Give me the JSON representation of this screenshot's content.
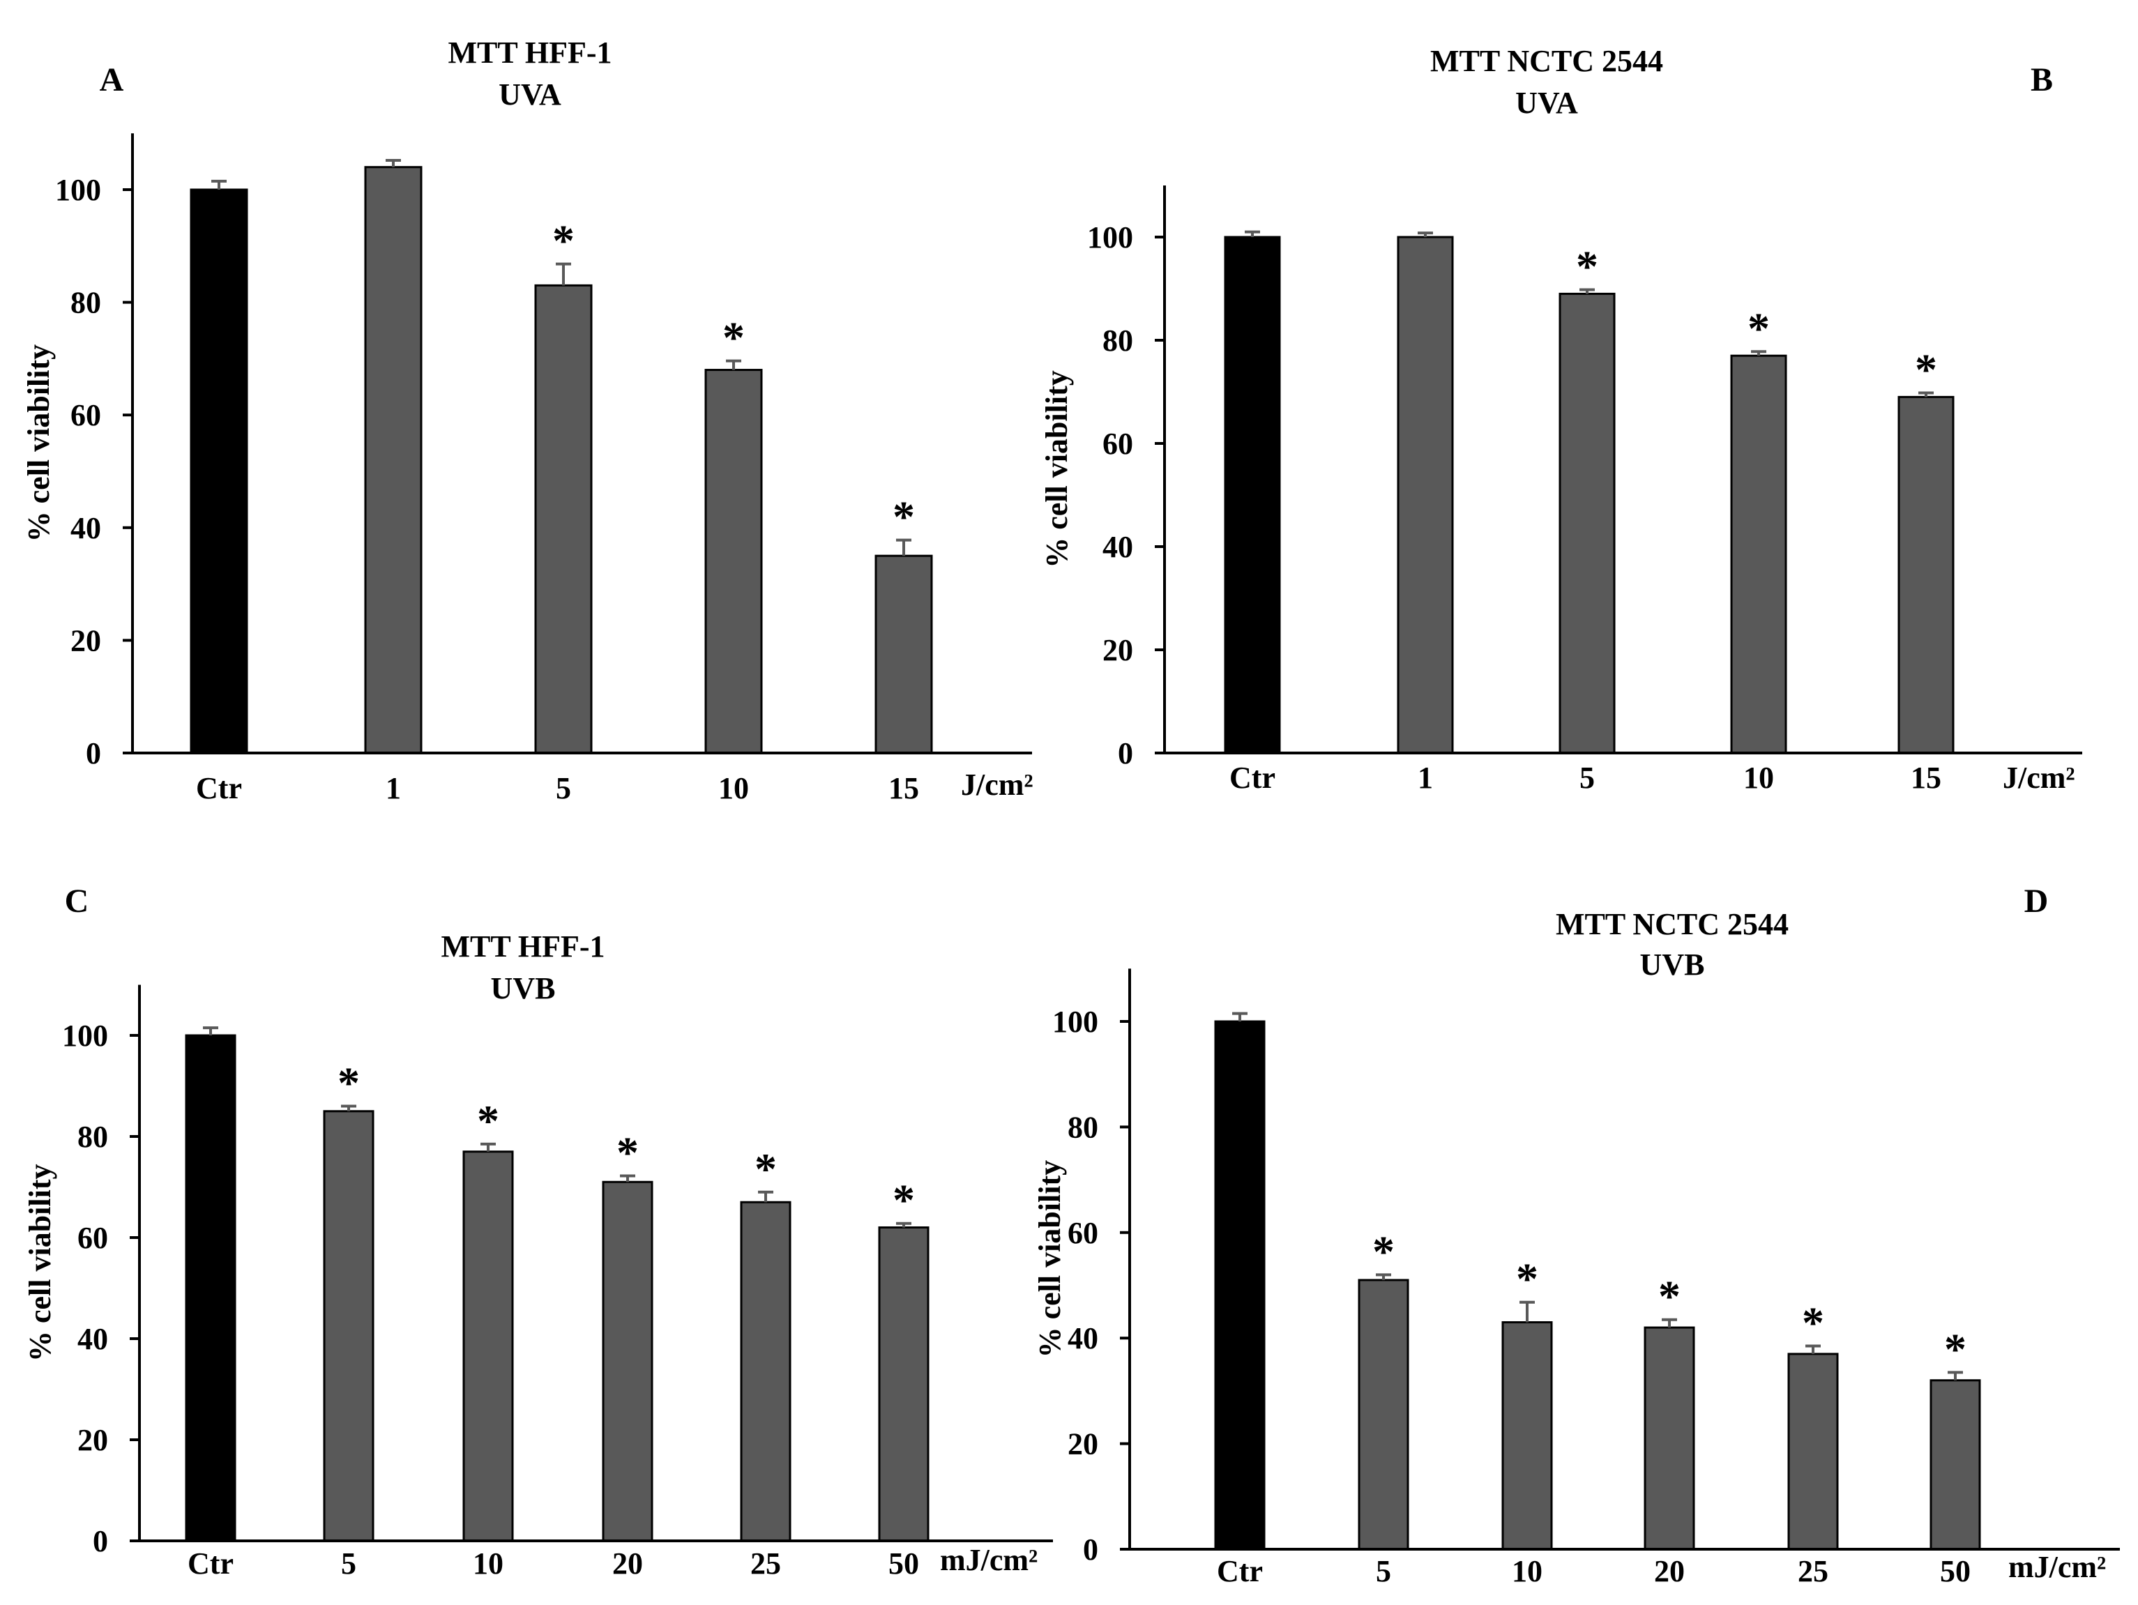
{
  "colors": {
    "control_bar": "#000000",
    "treated_bar": "#595959",
    "axis": "#000000",
    "error_bar": "#595959"
  },
  "chart_data": [
    {
      "panel_letter": "A",
      "type": "bar",
      "title": "MTT HFF-1",
      "subtitle": "UVA",
      "ylabel": "% cell viability",
      "unit_label": "J/cm²",
      "categories": [
        "Ctr",
        "1",
        "5",
        "10",
        "15"
      ],
      "values": [
        100,
        104,
        83,
        68,
        35
      ],
      "errors": [
        1.5,
        1.2,
        3.8,
        1.6,
        2.8
      ],
      "significant": [
        false,
        false,
        true,
        true,
        true
      ],
      "ylim": [
        0,
        110
      ],
      "yticks": [
        "0",
        "20",
        "40",
        "60",
        "80",
        "100"
      ],
      "marker": "*"
    },
    {
      "panel_letter": "B",
      "type": "bar",
      "title": "MTT NCTC 2544",
      "subtitle": "UVA",
      "ylabel": "% cell viability",
      "unit_label": "J/cm²",
      "categories": [
        "Ctr",
        "1",
        "5",
        "10",
        "15"
      ],
      "values": [
        100,
        100,
        89,
        77,
        69
      ],
      "errors": [
        1.0,
        0.8,
        0.8,
        0.8,
        0.8
      ],
      "significant": [
        false,
        false,
        true,
        true,
        true
      ],
      "ylim": [
        0,
        110
      ],
      "yticks": [
        "0",
        "20",
        "40",
        "60",
        "80",
        "100"
      ],
      "marker": "*"
    },
    {
      "panel_letter": "C",
      "type": "bar",
      "title": "MTT HFF-1",
      "subtitle": "UVB",
      "ylabel": "% cell viability",
      "unit_label": "mJ/cm²",
      "categories": [
        "Ctr",
        "5",
        "10",
        "20",
        "25",
        "50"
      ],
      "values": [
        100,
        85,
        77,
        71,
        67,
        62
      ],
      "errors": [
        1.5,
        1.0,
        1.5,
        1.2,
        2.0,
        0.8
      ],
      "significant": [
        false,
        true,
        true,
        true,
        true,
        true
      ],
      "ylim": [
        0,
        110
      ],
      "yticks": [
        "0",
        "20",
        "40",
        "60",
        "80",
        "100"
      ],
      "marker": "*"
    },
    {
      "panel_letter": "D",
      "type": "bar",
      "title": "MTT NCTC 2544",
      "subtitle": "UVB",
      "ylabel": "% cell viability",
      "unit_label": "mJ/cm²",
      "categories": [
        "Ctr",
        "5",
        "10",
        "20",
        "25",
        "50"
      ],
      "values": [
        100,
        51,
        43,
        42,
        37,
        32
      ],
      "errors": [
        1.5,
        1.0,
        3.8,
        1.5,
        1.5,
        1.5
      ],
      "significant": [
        false,
        true,
        true,
        true,
        true,
        true
      ],
      "ylim": [
        0,
        110
      ],
      "yticks": [
        "0",
        "20",
        "40",
        "60",
        "80",
        "100"
      ],
      "marker": "*"
    }
  ]
}
